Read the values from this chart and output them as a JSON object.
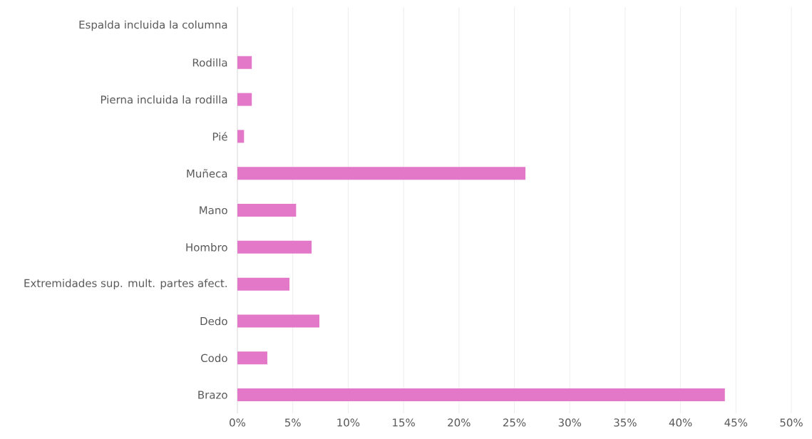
{
  "chart_data": {
    "type": "bar",
    "orientation": "horizontal",
    "categories": [
      "Espalda incluida la columna",
      "Rodilla",
      "Pierna incluida la rodilla",
      "Pié",
      "Muñeca",
      "Mano",
      "Hombro",
      "Extremidades sup. mult. partes afect.",
      "Dedo",
      "Codo",
      "Brazo"
    ],
    "values": [
      0,
      1.3,
      1.3,
      0.6,
      26.0,
      5.3,
      6.7,
      4.7,
      7.4,
      2.7,
      44.0
    ],
    "color": "#e377c8",
    "xlim": [
      0,
      50
    ],
    "xticks": [
      {
        "value": 0,
        "label": "0%"
      },
      {
        "value": 5,
        "label": "5%"
      },
      {
        "value": 10,
        "label": "10%"
      },
      {
        "value": 15,
        "label": "15%"
      },
      {
        "value": 20,
        "label": "20%"
      },
      {
        "value": 25,
        "label": "25%"
      },
      {
        "value": 30,
        "label": "30%"
      },
      {
        "value": 35,
        "label": "35%"
      },
      {
        "value": 40,
        "label": "40%"
      },
      {
        "value": 45,
        "label": "45%"
      },
      {
        "value": 50,
        "label": "50%"
      }
    ],
    "grid": "x"
  }
}
